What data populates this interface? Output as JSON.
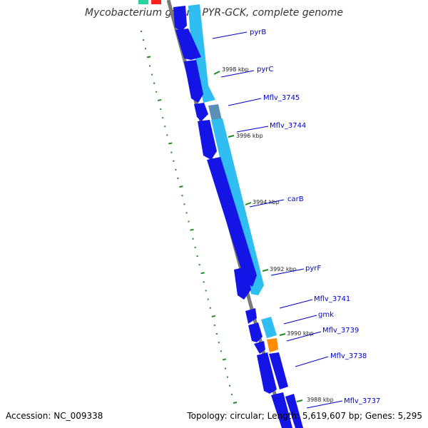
{
  "title": "Mycobacterium gilvum PYR-GCK, complete genome",
  "footer": {
    "accession_label": "Accession: NC_009338",
    "stats_label": "Topology: circular; Length: 5,619,607 bp; Genes: 5,295"
  },
  "colors": {
    "backbone": "#7a7a7a",
    "gene_dark": "#1414e6",
    "gene_light": "#2fbdf2",
    "gene_steel": "#5b8fb4",
    "gene_orange": "#ff8c00",
    "tick": "#228b22",
    "label": "#0000cc"
  },
  "position_labels": [
    "3998 kbp",
    "3996 kbp",
    "3994 kbp",
    "3992 kbp",
    "3990 kbp",
    "3988 kbp"
  ],
  "gene_labels": [
    "pyrB",
    "pyrC",
    "Mflv_3745",
    "Mflv_3744",
    "carB",
    "pyrF",
    "Mflv_3741",
    "gmk",
    "Mflv_3739",
    "Mflv_3738",
    "Mflv_3737"
  ]
}
